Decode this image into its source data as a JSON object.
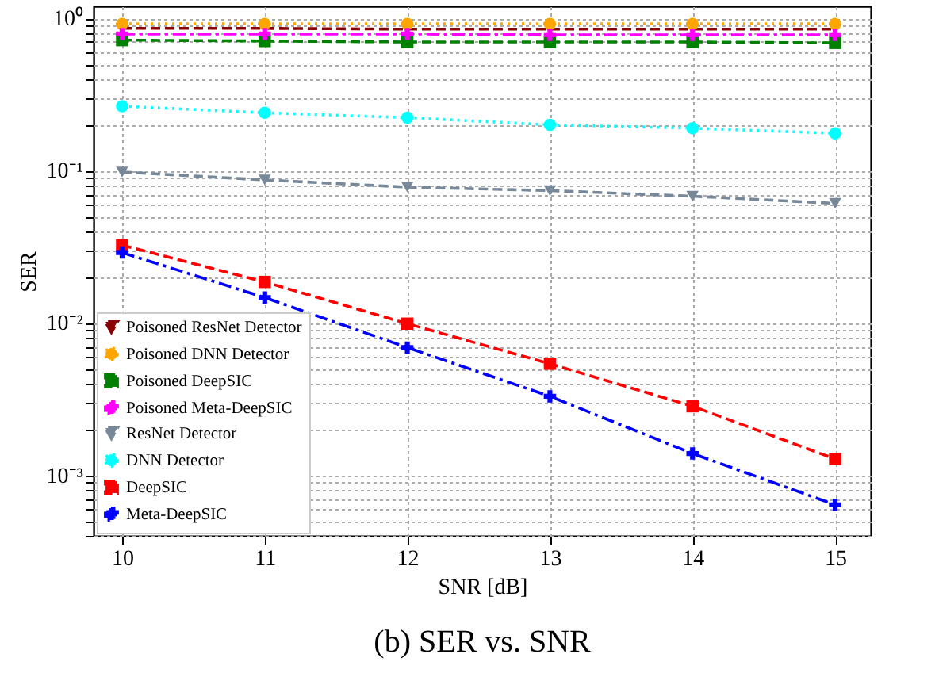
{
  "chart_data": {
    "type": "line",
    "title": "(b) SER vs. SNR",
    "xlabel": "SNR [dB]",
    "ylabel": "SER",
    "x": [
      10,
      11,
      12,
      13,
      14,
      15
    ],
    "xlim": [
      9.8,
      15.25
    ],
    "xticks": [
      10,
      11,
      12,
      13,
      14,
      15
    ],
    "ylim": [
      0.0004,
      1.2
    ],
    "log": "y",
    "grid": true,
    "legend": "bottom left",
    "yticks": [
      {
        "value": 0.0004,
        "label": null
      },
      {
        "value": 0.0005,
        "label": null
      },
      {
        "value": 0.0006,
        "label": null
      },
      {
        "value": 0.0007,
        "label": null
      },
      {
        "value": 0.0008,
        "label": null
      },
      {
        "value": 0.0009,
        "label": null
      },
      {
        "value": 0.001,
        "label": "10⁻³"
      },
      {
        "value": 0.002,
        "label": null
      },
      {
        "value": 0.003,
        "label": null
      },
      {
        "value": 0.004,
        "label": null
      },
      {
        "value": 0.005,
        "label": null
      },
      {
        "value": 0.006,
        "label": null
      },
      {
        "value": 0.007,
        "label": null
      },
      {
        "value": 0.008,
        "label": null
      },
      {
        "value": 0.009,
        "label": null
      },
      {
        "value": 0.01,
        "label": "10⁻²"
      },
      {
        "value": 0.02,
        "label": null
      },
      {
        "value": 0.03,
        "label": null
      },
      {
        "value": 0.04,
        "label": null
      },
      {
        "value": 0.05,
        "label": null
      },
      {
        "value": 0.06,
        "label": null
      },
      {
        "value": 0.07,
        "label": null
      },
      {
        "value": 0.08,
        "label": null
      },
      {
        "value": 0.09,
        "label": null
      },
      {
        "value": 0.1,
        "label": "10⁻¹"
      },
      {
        "value": 0.2,
        "label": null
      },
      {
        "value": 0.3,
        "label": null
      },
      {
        "value": 0.4,
        "label": null
      },
      {
        "value": 0.5,
        "label": null
      },
      {
        "value": 0.6,
        "label": null
      },
      {
        "value": 0.7,
        "label": null
      },
      {
        "value": 0.8,
        "label": null
      },
      {
        "value": 0.9,
        "label": null
      },
      {
        "value": 1,
        "label": "10⁰"
      }
    ],
    "series": [
      {
        "name": "Poisoned ResNet Detector",
        "color": "#8b0000",
        "marker": "triangle-down",
        "line_style": "dashed",
        "values": [
          0.86,
          0.86,
          0.85,
          0.85,
          0.85,
          0.85
        ]
      },
      {
        "name": "Poisoned DNN Detector",
        "color": "#ffa500",
        "marker": "circle",
        "line_style": "dotted",
        "values": [
          0.92,
          0.92,
          0.92,
          0.92,
          0.92,
          0.92
        ]
      },
      {
        "name": "Poisoned DeepSIC",
        "color": "#008000",
        "marker": "square",
        "line_style": "dashed",
        "values": [
          0.72,
          0.71,
          0.7,
          0.7,
          0.7,
          0.69
        ]
      },
      {
        "name": "Poisoned Meta-DeepSIC",
        "color": "#ff00ff",
        "marker": "cross",
        "line_style": "dashdot",
        "values": [
          0.79,
          0.79,
          0.79,
          0.78,
          0.78,
          0.78
        ]
      },
      {
        "name": "ResNet Detector",
        "color": "#778899",
        "marker": "triangle-down",
        "line_style": "dashed",
        "values": [
          0.098,
          0.087,
          0.078,
          0.074,
          0.068,
          0.061
        ]
      },
      {
        "name": "DNN Detector",
        "color": "#00ffff",
        "marker": "circle",
        "line_style": "dotted",
        "values": [
          0.265,
          0.24,
          0.223,
          0.2,
          0.19,
          0.176
        ]
      },
      {
        "name": "DeepSIC",
        "color": "#ff0000",
        "marker": "square",
        "line_style": "dashed",
        "values": [
          0.0324,
          0.0186,
          0.0099,
          0.0054,
          0.00284,
          0.00128
        ]
      },
      {
        "name": "Meta-DeepSIC",
        "color": "#0000ff",
        "marker": "cross",
        "line_style": "dashdot",
        "values": [
          0.029,
          0.0147,
          0.0069,
          0.0033,
          0.00139,
          0.00064
        ]
      }
    ]
  }
}
